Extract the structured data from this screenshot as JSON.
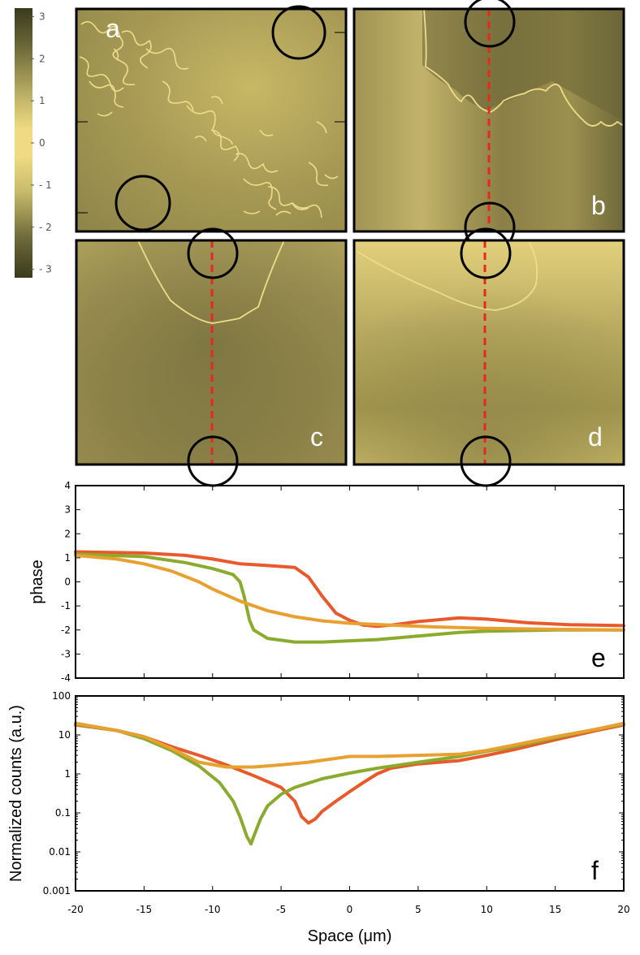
{
  "colorbar": {
    "ticks": [
      "3",
      "2",
      "1",
      "0",
      "- 1",
      "- 2",
      "- 3"
    ],
    "values": [
      3,
      2,
      1,
      0,
      -1,
      -2,
      -3
    ],
    "range": [
      -3.2,
      3.2
    ],
    "colors": {
      "dark": "#3a3a1c",
      "mid": "#9e9556",
      "light": "#f0dc80"
    }
  },
  "maps": {
    "labels": [
      "a",
      "b",
      "c",
      "d"
    ],
    "label_colors": [
      "#ffffff",
      "#ffffff",
      "#ffffff",
      "#ffffff"
    ],
    "marker_color": "#000000",
    "cut_line_color": "#e8281e"
  },
  "chart_data": [
    {
      "type": "line",
      "panel_label": "e",
      "title": "",
      "xlabel": "",
      "ylabel": "phase",
      "xlim": [
        -20,
        20
      ],
      "ylim": [
        -4,
        4
      ],
      "yticks": [
        4,
        3,
        2,
        1,
        0,
        -1,
        -2,
        -3,
        -4
      ],
      "ytick_labels": [
        "4",
        "3",
        "2",
        "1",
        "0",
        "-1",
        "-2",
        "-3",
        "-4"
      ],
      "xticks": [
        -20,
        -15,
        -10,
        -5,
        0,
        5,
        10,
        15,
        20
      ],
      "series": [
        {
          "name": "red",
          "color": "#e85a2c",
          "x": [
            -20,
            -15,
            -12,
            -10,
            -8,
            -6,
            -4,
            -3,
            -2,
            -1,
            0,
            1,
            2,
            3,
            5,
            8,
            10,
            13,
            16,
            20
          ],
          "y": [
            1.25,
            1.2,
            1.1,
            0.95,
            0.75,
            0.68,
            0.6,
            0.2,
            -0.6,
            -1.3,
            -1.6,
            -1.8,
            -1.85,
            -1.8,
            -1.65,
            -1.5,
            -1.55,
            -1.7,
            -1.78,
            -1.82
          ]
        },
        {
          "name": "green",
          "color": "#8aab2e",
          "x": [
            -20,
            -15,
            -12,
            -10,
            -8.5,
            -8,
            -7.7,
            -7.3,
            -7,
            -6,
            -4,
            -2,
            0,
            2,
            5,
            8,
            10,
            15,
            20
          ],
          "y": [
            1.15,
            1.05,
            0.8,
            0.55,
            0.3,
            0.0,
            -0.6,
            -1.6,
            -2.0,
            -2.35,
            -2.5,
            -2.5,
            -2.45,
            -2.4,
            -2.25,
            -2.1,
            -2.05,
            -2.0,
            -2.0
          ]
        },
        {
          "name": "orange",
          "color": "#e8a030",
          "x": [
            -20,
            -17,
            -15,
            -13,
            -11,
            -10,
            -8,
            -6,
            -4,
            -2,
            0,
            3,
            6,
            10,
            15,
            20
          ],
          "y": [
            1.1,
            0.95,
            0.75,
            0.45,
            0.0,
            -0.3,
            -0.8,
            -1.2,
            -1.45,
            -1.62,
            -1.72,
            -1.8,
            -1.87,
            -1.93,
            -1.97,
            -2.0
          ]
        }
      ]
    },
    {
      "type": "line",
      "panel_label": "f",
      "title": "",
      "xlabel": "Space (μm)",
      "ylabel": "Normalized counts (a.u.)",
      "yscale": "log",
      "xlim": [
        -20,
        20
      ],
      "ylim": [
        0.001,
        100
      ],
      "yticks": [
        100,
        10,
        1,
        0.1,
        0.01,
        0.001
      ],
      "ytick_labels": [
        "100",
        "10",
        "1",
        "0.1",
        "0.01",
        "0.001"
      ],
      "xticks": [
        -20,
        -15,
        -10,
        -5,
        0,
        5,
        10,
        15,
        20
      ],
      "xtick_labels": [
        "-20",
        "-15",
        "-10",
        "-5",
        "0",
        "5",
        "10",
        "15",
        "20"
      ],
      "series": [
        {
          "name": "red",
          "color": "#e85a2c",
          "x": [
            -20,
            -17,
            -15,
            -13,
            -11,
            -9,
            -7,
            -5,
            -4,
            -3.5,
            -3,
            -2.5,
            -2,
            -1,
            0,
            1,
            2,
            3,
            5,
            8,
            10,
            12,
            15,
            18,
            20
          ],
          "y": [
            18,
            13,
            9,
            5,
            3,
            1.7,
            0.9,
            0.45,
            0.2,
            0.08,
            0.055,
            0.07,
            0.11,
            0.2,
            0.35,
            0.6,
            1.0,
            1.4,
            1.8,
            2.2,
            3.0,
            4.2,
            7.5,
            13,
            18
          ]
        },
        {
          "name": "green",
          "color": "#8aab2e",
          "x": [
            -20,
            -17,
            -15,
            -13,
            -11,
            -9.5,
            -8.5,
            -8,
            -7.5,
            -7.2,
            -7,
            -6.5,
            -6,
            -5,
            -4,
            -2,
            0,
            2,
            5,
            8,
            10,
            12,
            15,
            18,
            20
          ],
          "y": [
            19,
            13,
            8,
            4,
            1.6,
            0.6,
            0.2,
            0.08,
            0.025,
            0.016,
            0.025,
            0.07,
            0.15,
            0.3,
            0.45,
            0.75,
            1.05,
            1.4,
            2.0,
            2.8,
            3.8,
            5.0,
            8.5,
            14,
            19
          ]
        },
        {
          "name": "orange",
          "color": "#e8a030",
          "x": [
            -20,
            -17,
            -15,
            -13,
            -11,
            -9,
            -7,
            -5,
            -3,
            -1,
            0,
            2,
            5,
            8,
            10,
            12,
            15,
            18,
            20
          ],
          "y": [
            20,
            13,
            9,
            4.5,
            2.0,
            1.5,
            1.5,
            1.7,
            2.0,
            2.5,
            2.8,
            2.8,
            3.0,
            3.2,
            4.0,
            5.5,
            9,
            14,
            20
          ]
        }
      ]
    }
  ]
}
